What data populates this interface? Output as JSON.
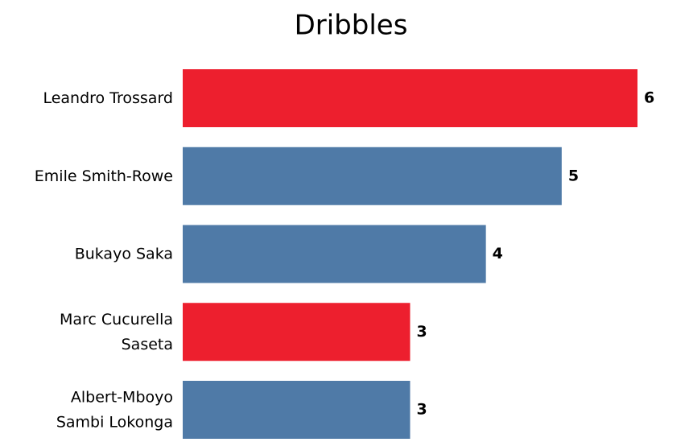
{
  "chart_data": {
    "type": "barh",
    "title": "Dribbles",
    "categories": [
      "Leandro Trossard",
      "Emile Smith-Rowe",
      "Bukayo Saka",
      "Marc Cucurella\nSaseta",
      "Albert-Mboyo\nSambi Lokonga"
    ],
    "values": [
      6,
      5,
      4,
      3,
      3
    ],
    "colors": [
      "#ed1f2e",
      "#4f7aa7",
      "#4f7aa7",
      "#ed1f2e",
      "#4f7aa7"
    ],
    "xlim": [
      0,
      6
    ]
  }
}
